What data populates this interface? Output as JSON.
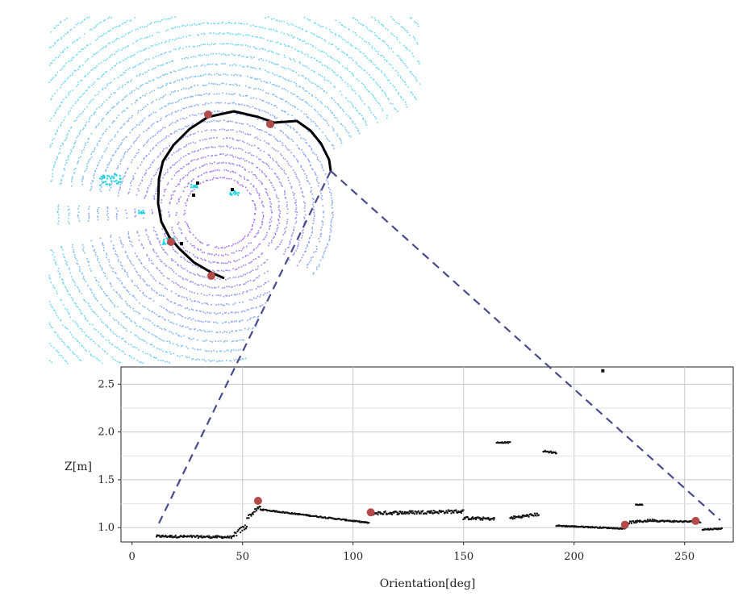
{
  "chart_data": {
    "type": "scatter",
    "xlabel": "Orientation[deg]",
    "ylabel": "Z[m]",
    "xlim": [
      -5,
      272
    ],
    "ylim": [
      0.85,
      2.68
    ],
    "xticks": [
      0,
      50,
      100,
      150,
      200,
      250
    ],
    "yticks": [
      1.0,
      1.5,
      2.0,
      2.5
    ],
    "xtick_labels": [
      "0",
      "50",
      "100",
      "150",
      "200",
      "250"
    ],
    "ytick_labels": [
      "1.0",
      "1.5",
      "2.0",
      "2.5"
    ],
    "grid": true,
    "point_color": "#111111",
    "marker_color": "#b54a4a",
    "segments": [
      {
        "x_start": 11,
        "x_end": 46,
        "y_start": 0.91,
        "y_end": 0.9,
        "noise": 0.012
      },
      {
        "x_start": 46,
        "x_end": 52,
        "y_start": 0.92,
        "y_end": 1.02,
        "noise": 0.03
      },
      {
        "x_start": 52,
        "x_end": 58,
        "y_start": 1.1,
        "y_end": 1.22,
        "noise": 0.02
      },
      {
        "x_start": 58,
        "x_end": 107,
        "y_start": 1.19,
        "y_end": 1.05,
        "noise": 0.006
      },
      {
        "x_start": 108,
        "x_end": 150,
        "y_start": 1.15,
        "y_end": 1.17,
        "noise": 0.018
      },
      {
        "x_start": 150,
        "x_end": 164,
        "y_start": 1.1,
        "y_end": 1.09,
        "noise": 0.015
      },
      {
        "x_start": 171,
        "x_end": 184,
        "y_start": 1.1,
        "y_end": 1.14,
        "noise": 0.015
      },
      {
        "x_start": 192,
        "x_end": 223,
        "y_start": 1.02,
        "y_end": 0.99,
        "noise": 0.006
      },
      {
        "x_start": 223,
        "x_end": 237,
        "y_start": 1.05,
        "y_end": 1.08,
        "noise": 0.012
      },
      {
        "x_start": 237,
        "x_end": 257,
        "y_start": 1.07,
        "y_end": 1.06,
        "noise": 0.008
      },
      {
        "x_start": 258,
        "x_end": 267,
        "y_start": 0.98,
        "y_end": 0.99,
        "noise": 0.006
      },
      {
        "x_start": 165,
        "x_end": 171,
        "y_start": 1.89,
        "y_end": 1.89,
        "noise": 0.005
      },
      {
        "x_start": 186,
        "x_end": 192,
        "y_start": 1.8,
        "y_end": 1.78,
        "noise": 0.008
      },
      {
        "x_start": 228,
        "x_end": 231,
        "y_start": 1.24,
        "y_end": 1.24,
        "noise": 0.004
      }
    ],
    "isolated_points": [
      {
        "x": 213,
        "y": 2.64
      }
    ],
    "markers": [
      {
        "x": 57,
        "y": 1.28
      },
      {
        "x": 108,
        "y": 1.16
      },
      {
        "x": 223,
        "y": 1.03
      },
      {
        "x": 255,
        "y": 1.07
      }
    ]
  },
  "point_cloud": {
    "ring_color_inner": "#a36cf2",
    "ring_color_outer": "#6fd8f5",
    "scatter_color": "#1cd4e0",
    "boundary_color": "#000000",
    "marker_color": "#b54a4a",
    "connector_color": "#4a4a8c"
  }
}
